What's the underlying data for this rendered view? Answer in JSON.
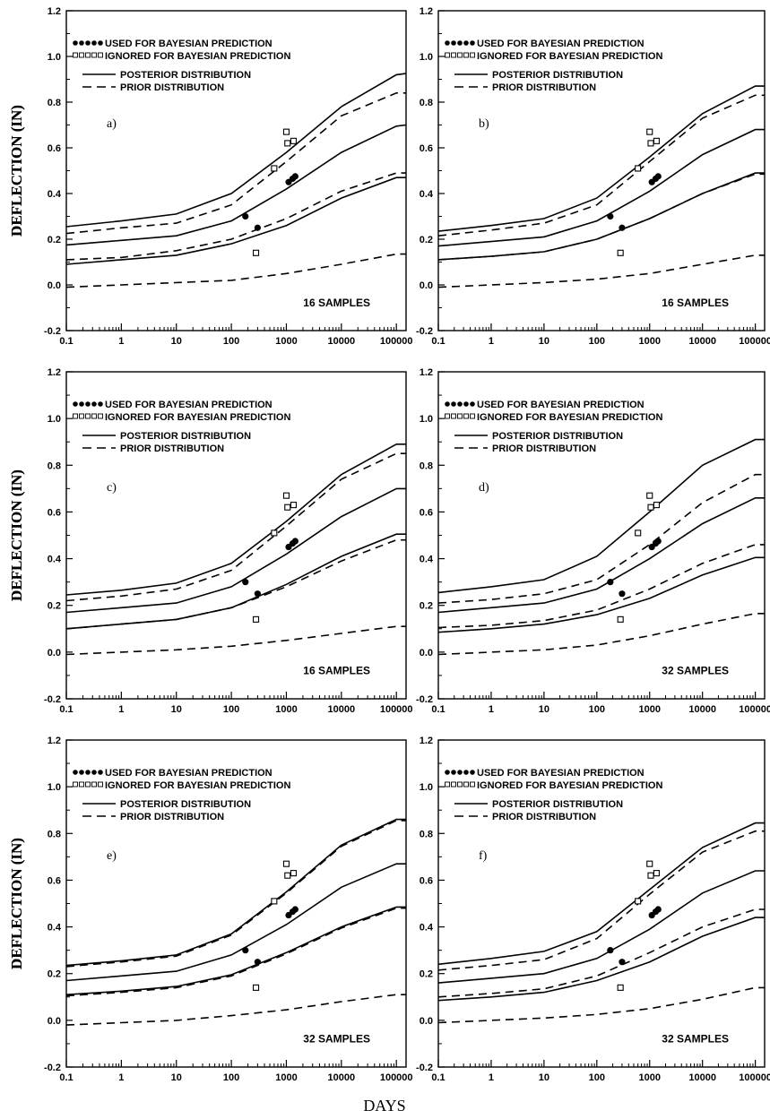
{
  "figure": {
    "ylabel": "DEFLECTION (IN)",
    "xlabel": "DAYS"
  },
  "legend": {
    "used": "USED FOR BAYESIAN PREDICTION",
    "ignored": "IGNORED FOR BAYESIAN PREDICTION",
    "posterior": "POSTERIOR DISTRIBUTION",
    "prior": "PRIOR DISTRIBUTION"
  },
  "axes": {
    "x_scale": "log",
    "xlim": [
      0.1,
      150000
    ],
    "ylim": [
      -0.2,
      1.2
    ],
    "x_ticks": [
      0.1,
      1,
      10,
      100,
      1000,
      10000,
      100000
    ],
    "x_tick_labels": [
      "0.1",
      "1",
      "10",
      "100",
      "1000",
      "10000",
      "100000"
    ],
    "y_ticks": [
      -0.2,
      0.0,
      0.2,
      0.4,
      0.6,
      0.8,
      1.0,
      1.2
    ],
    "y_tick_labels": [
      "-0.2",
      "0.0",
      "0.2",
      "0.4",
      "0.6",
      "0.8",
      "1.0",
      "1.2"
    ]
  },
  "chart_data": [
    {
      "type": "line",
      "panel": "a)",
      "samples_label": "16 SAMPLES",
      "x": [
        0.1,
        1,
        10,
        100,
        1000,
        10000,
        100000,
        150000
      ],
      "series": [
        {
          "style": "solid",
          "values": [
            0.255,
            0.28,
            0.31,
            0.4,
            0.58,
            0.78,
            0.92,
            0.925
          ]
        },
        {
          "style": "solid",
          "values": [
            0.175,
            0.195,
            0.215,
            0.28,
            0.42,
            0.58,
            0.695,
            0.7
          ]
        },
        {
          "style": "solid",
          "values": [
            0.09,
            0.11,
            0.13,
            0.18,
            0.26,
            0.38,
            0.47,
            0.47
          ]
        },
        {
          "style": "dashed",
          "values": [
            0.225,
            0.25,
            0.27,
            0.35,
            0.54,
            0.74,
            0.84,
            0.84
          ]
        },
        {
          "style": "dashed",
          "values": [
            0.11,
            0.12,
            0.15,
            0.2,
            0.29,
            0.41,
            0.49,
            0.49
          ]
        },
        {
          "style": "dashed",
          "values": [
            -0.01,
            0.0,
            0.01,
            0.02,
            0.05,
            0.09,
            0.135,
            0.135
          ]
        }
      ],
      "used_points": [
        [
          180,
          0.3
        ],
        [
          300,
          0.25
        ],
        [
          1100,
          0.45
        ],
        [
          1300,
          0.465
        ],
        [
          1450,
          0.475
        ]
      ],
      "ignored_points": [
        [
          280,
          0.14
        ],
        [
          600,
          0.51
        ],
        [
          1000,
          0.67
        ],
        [
          1050,
          0.62
        ],
        [
          1350,
          0.63
        ]
      ]
    },
    {
      "type": "line",
      "panel": "b)",
      "samples_label": "16 SAMPLES",
      "x": [
        0.1,
        1,
        10,
        100,
        1000,
        10000,
        100000,
        150000
      ],
      "series": [
        {
          "style": "solid",
          "values": [
            0.235,
            0.26,
            0.29,
            0.38,
            0.56,
            0.75,
            0.87,
            0.87
          ]
        },
        {
          "style": "solid",
          "values": [
            0.17,
            0.19,
            0.21,
            0.28,
            0.41,
            0.57,
            0.68,
            0.68
          ]
        },
        {
          "style": "solid",
          "values": [
            0.11,
            0.125,
            0.145,
            0.2,
            0.29,
            0.4,
            0.49,
            0.49
          ]
        },
        {
          "style": "dashed",
          "values": [
            0.215,
            0.24,
            0.27,
            0.35,
            0.54,
            0.73,
            0.83,
            0.83
          ]
        },
        {
          "style": "dashed",
          "values": [
            0.11,
            0.125,
            0.145,
            0.2,
            0.29,
            0.4,
            0.485,
            0.485
          ]
        },
        {
          "style": "dashed",
          "values": [
            -0.01,
            0.0,
            0.01,
            0.025,
            0.05,
            0.09,
            0.13,
            0.13
          ]
        }
      ],
      "used_points": [
        [
          180,
          0.3
        ],
        [
          300,
          0.25
        ],
        [
          1100,
          0.45
        ],
        [
          1300,
          0.465
        ],
        [
          1450,
          0.475
        ]
      ],
      "ignored_points": [
        [
          280,
          0.14
        ],
        [
          600,
          0.51
        ],
        [
          1000,
          0.67
        ],
        [
          1050,
          0.62
        ],
        [
          1350,
          0.63
        ]
      ]
    },
    {
      "type": "line",
      "panel": "c)",
      "samples_label": "16 SAMPLES",
      "x": [
        0.1,
        1,
        10,
        100,
        1000,
        10000,
        100000,
        150000
      ],
      "series": [
        {
          "style": "solid",
          "values": [
            0.245,
            0.265,
            0.295,
            0.38,
            0.56,
            0.76,
            0.89,
            0.89
          ]
        },
        {
          "style": "solid",
          "values": [
            0.17,
            0.19,
            0.21,
            0.28,
            0.42,
            0.58,
            0.7,
            0.7
          ]
        },
        {
          "style": "solid",
          "values": [
            0.1,
            0.12,
            0.14,
            0.19,
            0.29,
            0.41,
            0.505,
            0.505
          ]
        },
        {
          "style": "dashed",
          "values": [
            0.22,
            0.24,
            0.27,
            0.35,
            0.54,
            0.74,
            0.85,
            0.85
          ]
        },
        {
          "style": "dashed",
          "values": [
            0.1,
            0.12,
            0.14,
            0.19,
            0.28,
            0.39,
            0.48,
            0.48
          ]
        },
        {
          "style": "dashed",
          "values": [
            -0.01,
            0.0,
            0.01,
            0.025,
            0.05,
            0.08,
            0.11,
            0.11
          ]
        }
      ],
      "used_points": [
        [
          180,
          0.3
        ],
        [
          300,
          0.25
        ],
        [
          1100,
          0.45
        ],
        [
          1300,
          0.465
        ],
        [
          1450,
          0.475
        ]
      ],
      "ignored_points": [
        [
          280,
          0.14
        ],
        [
          600,
          0.51
        ],
        [
          1000,
          0.67
        ],
        [
          1050,
          0.62
        ],
        [
          1350,
          0.63
        ]
      ]
    },
    {
      "type": "line",
      "panel": "d)",
      "samples_label": "32 SAMPLES",
      "x": [
        0.1,
        1,
        10,
        100,
        1000,
        10000,
        100000,
        150000
      ],
      "series": [
        {
          "style": "solid",
          "values": [
            0.255,
            0.28,
            0.31,
            0.41,
            0.6,
            0.8,
            0.91,
            0.91
          ]
        },
        {
          "style": "solid",
          "values": [
            0.17,
            0.19,
            0.21,
            0.27,
            0.4,
            0.55,
            0.66,
            0.66
          ]
        },
        {
          "style": "solid",
          "values": [
            0.085,
            0.1,
            0.12,
            0.16,
            0.23,
            0.33,
            0.405,
            0.405
          ]
        },
        {
          "style": "dashed",
          "values": [
            0.21,
            0.225,
            0.25,
            0.31,
            0.46,
            0.64,
            0.76,
            0.76
          ]
        },
        {
          "style": "dashed",
          "values": [
            0.105,
            0.115,
            0.135,
            0.18,
            0.27,
            0.38,
            0.46,
            0.46
          ]
        },
        {
          "style": "dashed",
          "values": [
            -0.01,
            0.0,
            0.01,
            0.03,
            0.07,
            0.12,
            0.165,
            0.165
          ]
        }
      ],
      "used_points": [
        [
          180,
          0.3
        ],
        [
          300,
          0.25
        ],
        [
          1100,
          0.45
        ],
        [
          1300,
          0.465
        ],
        [
          1450,
          0.475
        ]
      ],
      "ignored_points": [
        [
          280,
          0.14
        ],
        [
          600,
          0.51
        ],
        [
          1000,
          0.67
        ],
        [
          1050,
          0.62
        ],
        [
          1350,
          0.63
        ]
      ]
    },
    {
      "type": "line",
      "panel": "e)",
      "samples_label": "32 SAMPLES",
      "x": [
        0.1,
        1,
        10,
        100,
        1000,
        10000,
        100000,
        150000
      ],
      "series": [
        {
          "style": "solid",
          "values": [
            0.235,
            0.255,
            0.28,
            0.37,
            0.55,
            0.75,
            0.86,
            0.86
          ]
        },
        {
          "style": "solid",
          "values": [
            0.17,
            0.19,
            0.21,
            0.28,
            0.41,
            0.57,
            0.67,
            0.67
          ]
        },
        {
          "style": "solid",
          "values": [
            0.11,
            0.125,
            0.145,
            0.195,
            0.29,
            0.4,
            0.485,
            0.485
          ]
        },
        {
          "style": "dashed",
          "values": [
            0.23,
            0.25,
            0.275,
            0.365,
            0.545,
            0.745,
            0.855,
            0.855
          ]
        },
        {
          "style": "dashed",
          "values": [
            0.105,
            0.12,
            0.14,
            0.19,
            0.285,
            0.395,
            0.48,
            0.48
          ]
        },
        {
          "style": "dashed",
          "values": [
            -0.02,
            -0.01,
            0.0,
            0.02,
            0.045,
            0.08,
            0.11,
            0.11
          ]
        }
      ],
      "used_points": [
        [
          180,
          0.3
        ],
        [
          300,
          0.25
        ],
        [
          1100,
          0.45
        ],
        [
          1300,
          0.465
        ],
        [
          1450,
          0.475
        ]
      ],
      "ignored_points": [
        [
          280,
          0.14
        ],
        [
          600,
          0.51
        ],
        [
          1000,
          0.67
        ],
        [
          1050,
          0.62
        ],
        [
          1350,
          0.63
        ]
      ]
    },
    {
      "type": "line",
      "panel": "f)",
      "samples_label": "32 SAMPLES",
      "x": [
        0.1,
        1,
        10,
        100,
        1000,
        10000,
        100000,
        150000
      ],
      "series": [
        {
          "style": "solid",
          "values": [
            0.24,
            0.265,
            0.295,
            0.38,
            0.56,
            0.74,
            0.845,
            0.845
          ]
        },
        {
          "style": "solid",
          "values": [
            0.16,
            0.18,
            0.2,
            0.265,
            0.39,
            0.545,
            0.64,
            0.64
          ]
        },
        {
          "style": "solid",
          "values": [
            0.085,
            0.1,
            0.12,
            0.17,
            0.25,
            0.36,
            0.44,
            0.44
          ]
        },
        {
          "style": "dashed",
          "values": [
            0.215,
            0.235,
            0.26,
            0.35,
            0.54,
            0.72,
            0.81,
            0.81
          ]
        },
        {
          "style": "dashed",
          "values": [
            0.1,
            0.115,
            0.135,
            0.19,
            0.29,
            0.4,
            0.475,
            0.475
          ]
        },
        {
          "style": "dashed",
          "values": [
            -0.01,
            0.0,
            0.01,
            0.025,
            0.05,
            0.09,
            0.14,
            0.14
          ]
        }
      ],
      "used_points": [
        [
          180,
          0.3
        ],
        [
          300,
          0.25
        ],
        [
          1100,
          0.45
        ],
        [
          1300,
          0.465
        ],
        [
          1450,
          0.475
        ]
      ],
      "ignored_points": [
        [
          280,
          0.14
        ],
        [
          600,
          0.51
        ],
        [
          1000,
          0.67
        ],
        [
          1050,
          0.62
        ],
        [
          1350,
          0.63
        ]
      ]
    }
  ]
}
